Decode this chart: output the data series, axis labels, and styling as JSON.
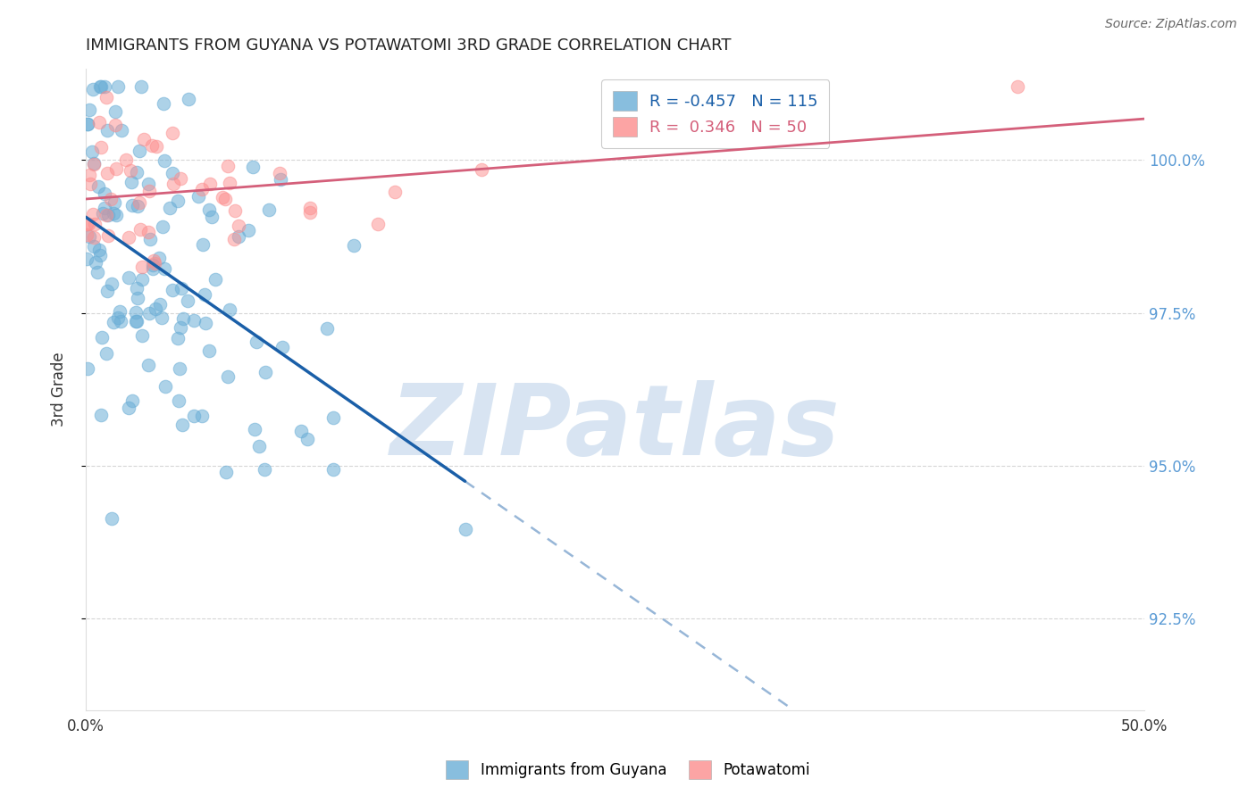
{
  "title": "IMMIGRANTS FROM GUYANA VS POTAWATOMI 3RD GRADE CORRELATION CHART",
  "source": "Source: ZipAtlas.com",
  "ylabel": "3rd Grade",
  "y_ticks": [
    92.5,
    95.0,
    97.5,
    100.0
  ],
  "y_tick_labels": [
    "92.5%",
    "95.0%",
    "97.5%",
    "100.0%"
  ],
  "xlim": [
    0.0,
    50.0
  ],
  "ylim": [
    91.0,
    101.5
  ],
  "blue_R": -0.457,
  "blue_N": 115,
  "pink_R": 0.346,
  "pink_N": 50,
  "blue_color": "#6baed6",
  "pink_color": "#fc8d8d",
  "blue_line_color": "#1a5fa8",
  "pink_line_color": "#d45f7a",
  "legend_blue_label": "R = -0.457   N = 115",
  "legend_pink_label": "R =  0.346   N = 50",
  "watermark": "ZIPatlas",
  "watermark_color": "#c8d8f0",
  "tick_color": "#5b9bd5"
}
